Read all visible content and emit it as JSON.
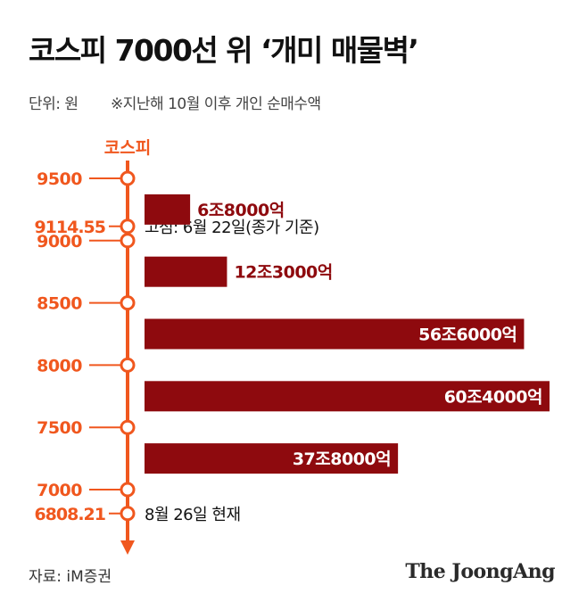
{
  "title": "코스피 7000선 위 ‘개미 매물벽’",
  "unit_label": "단위: 원",
  "note": "※지난해 10월 이후 개인 순매수액",
  "source": "자료: iM증권",
  "logo_text": "The JoongAng",
  "colors": {
    "accent": "#f0571e",
    "bar": "#8e0a0e",
    "bar_label": "#8e0a0e",
    "bar_label_inside": "#ffffff"
  },
  "chart_data": {
    "type": "bar",
    "orientation": "horizontal",
    "axis_title": "코스피",
    "ticks": [
      "9500",
      "9000",
      "8500",
      "8000",
      "7500",
      "7000"
    ],
    "tick_values": [
      9500,
      9000,
      8500,
      8000,
      7500,
      7000
    ],
    "markers": [
      {
        "value": 9114.55,
        "tick_label": "9114.55",
        "annotation": "고점: 6월 22일(종가 기준)"
      },
      {
        "value": 6808.21,
        "tick_label": "6808.21",
        "annotation": "8월 26일 현재"
      }
    ],
    "bars": [
      {
        "range": [
          9000,
          9500
        ],
        "value_trillion_won": 6.8,
        "label": "6조8000억"
      },
      {
        "range": [
          8500,
          9000
        ],
        "value_trillion_won": 12.3,
        "label": "12조3000억"
      },
      {
        "range": [
          8000,
          8500
        ],
        "value_trillion_won": 56.6,
        "label": "56조6000억"
      },
      {
        "range": [
          7500,
          8000
        ],
        "value_trillion_won": 60.4,
        "label": "60조4000억"
      },
      {
        "range": [
          7000,
          7500
        ],
        "value_trillion_won": 37.8,
        "label": "37조8000억"
      }
    ]
  }
}
